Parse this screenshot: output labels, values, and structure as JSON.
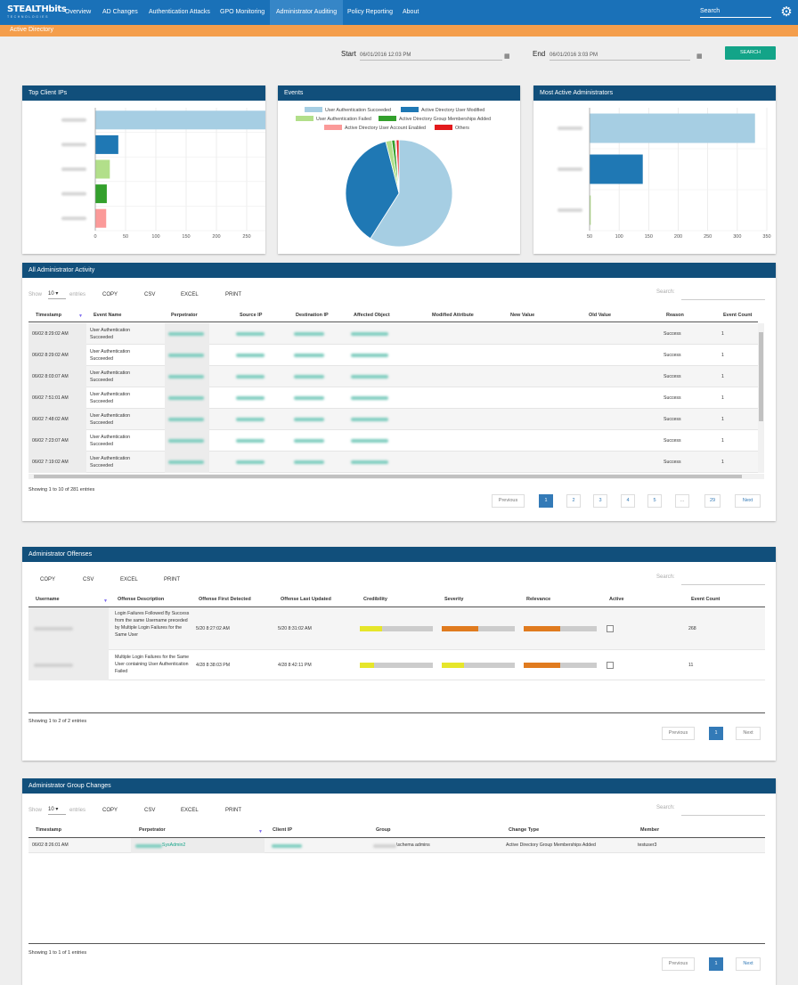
{
  "brand": {
    "name": "STEALTHbits",
    "tagline": "TECHNOLOGIES"
  },
  "nav": {
    "items": [
      "Overview",
      "AD Changes",
      "Authentication Attacks",
      "GPO Monitoring",
      "Administrator Auditing",
      "Policy Reporting",
      "About"
    ],
    "active": "Administrator Auditing",
    "search_placeholder": "Search"
  },
  "subnav": {
    "label": "Active Directory"
  },
  "daterange": {
    "start_label": "Start",
    "start_value": "06/01/2016 12:03 PM",
    "end_label": "End",
    "end_value": "06/01/2016 3:03 PM",
    "search_button": "SEARCH"
  },
  "colors": {
    "nav": "#1a71b8",
    "panel_header": "#114f7b",
    "orange": "#f49e4c",
    "teal": "#13a488",
    "light_blue": "#a6cee3",
    "blue": "#1f78b4",
    "light_green": "#b2df8a",
    "green": "#33a02c",
    "pink": "#fb9a99",
    "red": "#e31a1c"
  },
  "chart_data": [
    {
      "type": "bar",
      "orientation": "horizontal",
      "title": "Top Client IPs",
      "categories": [
        "",
        "",
        "",
        "",
        ""
      ],
      "values": [
        293,
        38,
        24,
        19,
        18
      ],
      "xlim": [
        0,
        300
      ],
      "xticks": [
        "0",
        "50",
        "100",
        "150",
        "200",
        "250",
        "300"
      ],
      "colors": [
        "#a6cee3",
        "#1f78b4",
        "#b2df8a",
        "#33a02c",
        "#fb9a99"
      ]
    },
    {
      "type": "pie",
      "title": "Events",
      "labels": [
        "User Authentication Succeeded",
        "Active Directory User Modified",
        "User Authentication Failed",
        "Active Directory Group Memberships Added",
        "Active Directory User Account Enabled",
        "Others"
      ],
      "values": [
        59,
        37,
        1.8,
        1,
        0.4,
        0.8
      ],
      "colors": [
        "#a6cee3",
        "#1f78b4",
        "#b2df8a",
        "#33a02c",
        "#fb9a99",
        "#e31a1c"
      ],
      "legend": "top"
    },
    {
      "type": "bar",
      "orientation": "horizontal",
      "title": "Most Active Administrators",
      "categories": [
        "",
        "",
        ""
      ],
      "values": [
        330,
        140,
        52
      ],
      "xlim": [
        50,
        350
      ],
      "xticks": [
        "50",
        "100",
        "150",
        "200",
        "250",
        "300",
        "350"
      ],
      "colors": [
        "#a6cee3",
        "#1f78b4",
        "#b2df8a"
      ]
    }
  ],
  "activity": {
    "title": "All Administrator Activity",
    "show": "Show",
    "entries_value": "10",
    "entries": "entries",
    "buttons": [
      "COPY",
      "CSV",
      "EXCEL",
      "PRINT"
    ],
    "search_label": "Search:",
    "columns": [
      "Timestamp",
      "Event Name",
      "Perpetrator",
      "Source IP",
      "Destination IP",
      "Affected Object",
      "Modified Attribute",
      "New Value",
      "Old Value",
      "Reason",
      "Event Count"
    ],
    "rows": [
      {
        "ts": "06/02 8:29:02 AM",
        "event": "User Authentication Succeeded",
        "reason": "Success",
        "count": "1"
      },
      {
        "ts": "06/02 8:29:02 AM",
        "event": "User Authentication Succeeded",
        "reason": "Success",
        "count": "1"
      },
      {
        "ts": "06/02 8:03:07 AM",
        "event": "User Authentication Succeeded",
        "reason": "Success",
        "count": "1"
      },
      {
        "ts": "06/02 7:51:01 AM",
        "event": "User Authentication Succeeded",
        "reason": "Success",
        "count": "1"
      },
      {
        "ts": "06/02 7:48:02 AM",
        "event": "User Authentication Succeeded",
        "reason": "Success",
        "count": "1"
      },
      {
        "ts": "06/02 7:23:07 AM",
        "event": "User Authentication Succeeded",
        "reason": "Success",
        "count": "1"
      },
      {
        "ts": "06/02 7:19:02 AM",
        "event": "User Authentication Succeeded",
        "reason": "Success",
        "count": "1"
      }
    ],
    "info": "Showing 1 to 10 of 281 entries",
    "pagination": [
      "Previous",
      "1",
      "2",
      "3",
      "4",
      "5",
      "...",
      "29",
      "Next"
    ]
  },
  "offenses": {
    "title": "Administrator Offenses",
    "buttons": [
      "COPY",
      "CSV",
      "EXCEL",
      "PRINT"
    ],
    "search_label": "Search:",
    "columns": [
      "Username",
      "Offense Description",
      "Offense First Detected",
      "Offense Last Updated",
      "Credibility",
      "Severity",
      "Relevance",
      "Active",
      "Event Count"
    ],
    "rows": [
      {
        "desc": "Login Failures Followed By Success from the same Username preceded by Multiple Login Failures for the Same User",
        "first": "5/20 8:27:02 AM",
        "last": "5/20 8:31:02 AM",
        "credibility": 0.3,
        "severity": 0.5,
        "relevance": 0.5,
        "count": "268"
      },
      {
        "desc": "Multiple Login Failures for the Same User containing User Authentication Failed",
        "first": "4/28 8:38:03 PM",
        "last": "4/28 8:42:11 PM",
        "credibility": 0.2,
        "severity": 0.3,
        "relevance": 0.5,
        "count": "11"
      }
    ],
    "info": "Showing 1 to 2 of 2 entries",
    "pagination": [
      "Previous",
      "1",
      "Next"
    ]
  },
  "groups": {
    "title": "Administrator Group Changes",
    "show": "Show",
    "entries_value": "10",
    "entries": "entries",
    "buttons": [
      "COPY",
      "CSV",
      "EXCEL",
      "PRINT"
    ],
    "search_label": "Search:",
    "columns": [
      "Timestamp",
      "Perpetrator",
      "Client IP",
      "Group",
      "Change Type",
      "Member"
    ],
    "rows": [
      {
        "ts": "06/02 8:26:01 AM",
        "perp_suffix": "SysAdmin2",
        "group_suffix": "\\schema admins",
        "change": "Active Directory Group Memberships Added",
        "member": "testuser3"
      }
    ],
    "info": "Showing 1 to 1 of 1 entries",
    "pagination": [
      "Previous",
      "1",
      "Next"
    ]
  }
}
